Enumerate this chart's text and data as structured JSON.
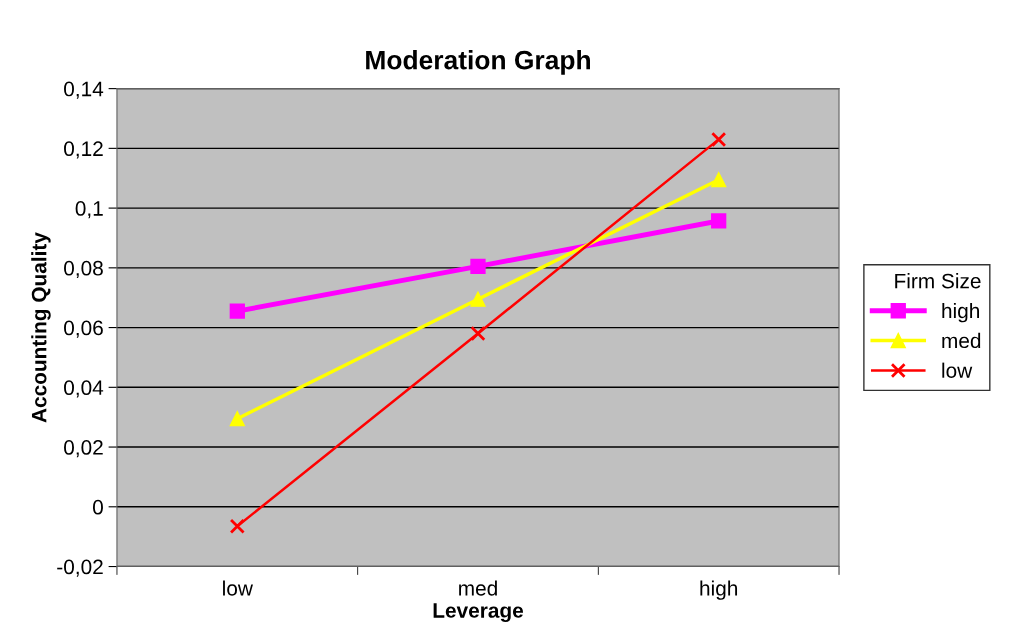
{
  "chart_data": {
    "type": "line",
    "title": "Moderation Graph",
    "xlabel": "Leverage",
    "ylabel": "Accounting Quality",
    "legend_title": "Firm Size",
    "categories": [
      "low",
      "med",
      "high"
    ],
    "series": [
      {
        "name": "high",
        "color": "#ff00ff",
        "marker": "square",
        "values": [
          0.0655,
          0.0805,
          0.0957
        ]
      },
      {
        "name": "med",
        "color": "#ffff00",
        "marker": "triangle",
        "values": [
          0.0295,
          0.0695,
          0.1095
        ]
      },
      {
        "name": "low",
        "color": "#ff0000",
        "marker": "cross",
        "values": [
          -0.0065,
          0.058,
          0.123
        ]
      }
    ],
    "ylim": [
      -0.02,
      0.14
    ],
    "yticks": [
      {
        "value": -0.02,
        "label": "-0,02"
      },
      {
        "value": 0,
        "label": "0"
      },
      {
        "value": 0.02,
        "label": "0,02"
      },
      {
        "value": 0.04,
        "label": "0,04"
      },
      {
        "value": 0.06,
        "label": "0,06"
      },
      {
        "value": 0.08,
        "label": "0,08"
      },
      {
        "value": 0.1,
        "label": "0,1"
      },
      {
        "value": 0.12,
        "label": "0,12"
      },
      {
        "value": 0.14,
        "label": "0,14"
      }
    ],
    "grid": "y",
    "legend": "right",
    "line_style": "solid"
  }
}
